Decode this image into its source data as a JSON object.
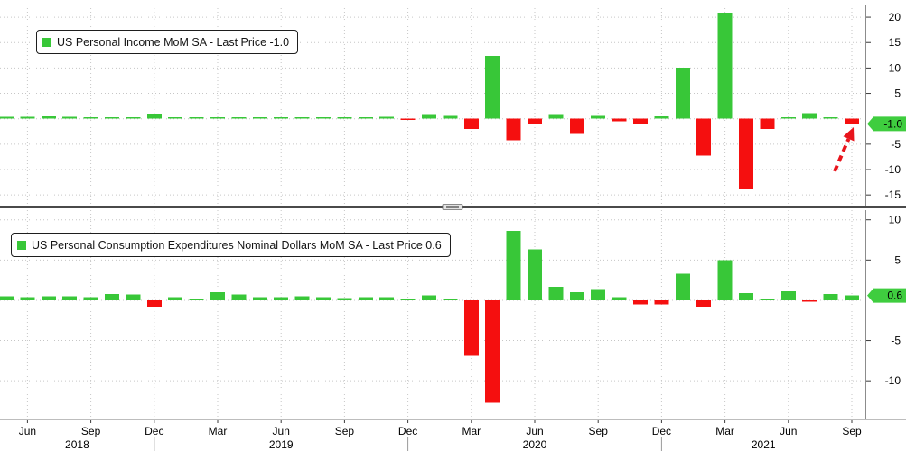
{
  "chart_data": [
    {
      "type": "bar",
      "x": [
        "2018-05",
        "2018-06",
        "2018-07",
        "2018-08",
        "2018-09",
        "2018-10",
        "2018-11",
        "2018-12",
        "2019-01",
        "2019-02",
        "2019-03",
        "2019-04",
        "2019-05",
        "2019-06",
        "2019-07",
        "2019-08",
        "2019-09",
        "2019-10",
        "2019-11",
        "2019-12",
        "2020-01",
        "2020-02",
        "2020-03",
        "2020-04",
        "2020-05",
        "2020-06",
        "2020-07",
        "2020-08",
        "2020-09",
        "2020-10",
        "2020-11",
        "2020-12",
        "2021-01",
        "2021-02",
        "2021-03",
        "2021-04",
        "2021-05",
        "2021-06",
        "2021-07",
        "2021-08",
        "2021-09"
      ],
      "series": [
        {
          "name": "US Personal Income MoM SA - Last Price -1.0",
          "values": [
            0.4,
            0.4,
            0.5,
            0.4,
            0.2,
            0.3,
            0.2,
            1.0,
            0.2,
            0.2,
            0.2,
            0.1,
            0.1,
            0.1,
            0.1,
            0.3,
            0.3,
            0.3,
            0.4,
            -0.2,
            0.9,
            0.6,
            -2.0,
            12.4,
            -4.2,
            -1.0,
            0.9,
            -3.0,
            0.6,
            -0.5,
            -1.0,
            0.5,
            10.1,
            -7.2,
            20.9,
            -13.8,
            -2.0,
            0.2,
            1.1,
            0.2,
            -1.0
          ]
        }
      ],
      "ylim": [
        -17.1,
        22.5
      ],
      "y_ticks": [
        20,
        15,
        10,
        5,
        -5,
        -10,
        -15
      ],
      "y_axis_side": "right",
      "last_price": "-1.0",
      "legend_position": "top-left",
      "grid": true
    },
    {
      "type": "bar",
      "x": [
        "2018-05",
        "2018-06",
        "2018-07",
        "2018-08",
        "2018-09",
        "2018-10",
        "2018-11",
        "2018-12",
        "2019-01",
        "2019-02",
        "2019-03",
        "2019-04",
        "2019-05",
        "2019-06",
        "2019-07",
        "2019-08",
        "2019-09",
        "2019-10",
        "2019-11",
        "2019-12",
        "2020-01",
        "2020-02",
        "2020-03",
        "2020-04",
        "2020-05",
        "2020-06",
        "2020-07",
        "2020-08",
        "2020-09",
        "2020-10",
        "2020-11",
        "2020-12",
        "2021-01",
        "2021-02",
        "2021-03",
        "2021-04",
        "2021-05",
        "2021-06",
        "2021-07",
        "2021-08",
        "2021-09"
      ],
      "series": [
        {
          "name": "US Personal Consumption Expenditures Nominal Dollars MoM SA - Last Price 0.6",
          "values": [
            0.5,
            0.4,
            0.5,
            0.5,
            0.4,
            0.8,
            0.7,
            -0.8,
            0.4,
            0.1,
            1.0,
            0.7,
            0.4,
            0.4,
            0.5,
            0.4,
            0.3,
            0.4,
            0.4,
            0.2,
            0.6,
            0.1,
            -6.9,
            -12.7,
            8.6,
            6.3,
            1.7,
            1.0,
            1.4,
            0.4,
            -0.5,
            -0.5,
            3.3,
            -0.8,
            5.0,
            0.9,
            0.1,
            1.1,
            -0.1,
            0.8,
            0.6
          ]
        }
      ],
      "ylim": [
        -14.8,
        11.2
      ],
      "y_ticks": [
        10,
        5,
        -5,
        -10
      ],
      "y_axis_side": "right",
      "last_price": "0.6",
      "legend_position": "top-left",
      "grid": true,
      "x_ticks": [
        {
          "label": "Jun",
          "date": "2018-06"
        },
        {
          "label": "Sep",
          "date": "2018-09"
        },
        {
          "label": "Dec",
          "date": "2018-12"
        },
        {
          "label": "Mar",
          "date": "2019-03"
        },
        {
          "label": "Jun",
          "date": "2019-06"
        },
        {
          "label": "Sep",
          "date": "2019-09"
        },
        {
          "label": "Dec",
          "date": "2019-12"
        },
        {
          "label": "Mar",
          "date": "2020-03"
        },
        {
          "label": "Jun",
          "date": "2020-06"
        },
        {
          "label": "Sep",
          "date": "2020-09"
        },
        {
          "label": "Dec",
          "date": "2020-12"
        },
        {
          "label": "Mar",
          "date": "2021-03"
        },
        {
          "label": "Jun",
          "date": "2021-06"
        },
        {
          "label": "Sep",
          "date": "2021-09"
        }
      ],
      "x_year_labels": [
        {
          "label": "2018"
        },
        {
          "label": "2019"
        },
        {
          "label": "2020"
        },
        {
          "label": "2021"
        }
      ]
    }
  ],
  "colors": {
    "positive_bar": "#38c738",
    "negative_bar": "#f50f0f",
    "last_price_box": "#3fcd3f",
    "annotation_arrow": "#e8141c",
    "gridline": "#c6c6c6"
  }
}
